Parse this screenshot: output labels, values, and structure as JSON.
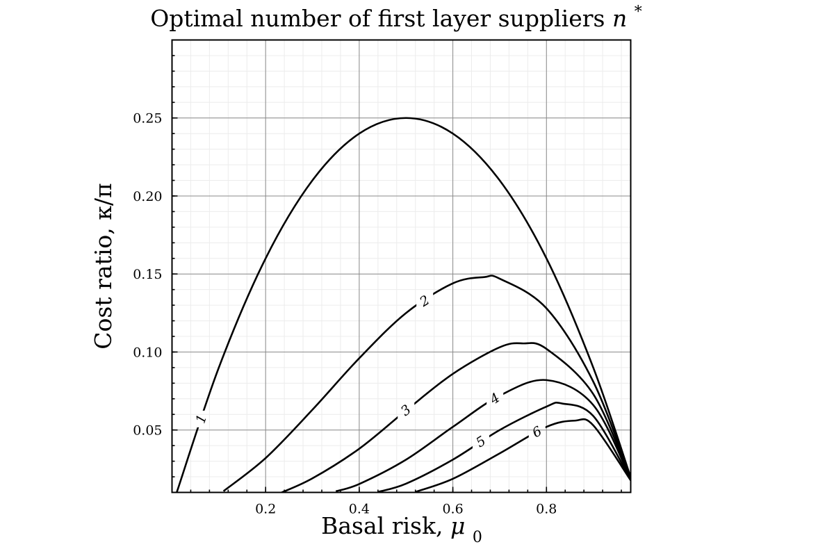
{
  "chart_data": {
    "type": "line",
    "title": "Optimal number of first layer suppliers",
    "title_symbol": "n",
    "title_superscript": "*",
    "xlabel": "Basal risk, ",
    "xlabel_symbol": "μ",
    "xlabel_subscript": "0",
    "ylabel": "Cost ratio, κ/π",
    "xlim": [
      0.0,
      0.98
    ],
    "ylim": [
      0.01,
      0.3
    ],
    "xticks": [
      0.2,
      0.4,
      0.6,
      0.8
    ],
    "xtick_labels": [
      "0.2",
      "0.4",
      "0.6",
      "0.8"
    ],
    "yticks": [
      0.05,
      0.1,
      0.15,
      0.2,
      0.25
    ],
    "ytick_labels": [
      "0.05",
      "0.10",
      "0.15",
      "0.20",
      "0.25"
    ],
    "grid": true,
    "legend": "none",
    "series": [
      {
        "label": "1",
        "x": [
          0.01,
          0.1,
          0.2,
          0.3,
          0.4,
          0.5,
          0.6,
          0.7,
          0.8,
          0.9,
          0.98
        ],
        "y": [
          0.0099,
          0.09,
          0.16,
          0.21,
          0.24,
          0.25,
          0.24,
          0.21,
          0.16,
          0.09,
          0.0196
        ],
        "label_x": 0.063
      },
      {
        "label": "2",
        "x": [
          0.11,
          0.2,
          0.3,
          0.4,
          0.5,
          0.6,
          0.667,
          0.7,
          0.8,
          0.9,
          0.98
        ],
        "y": [
          0.0108,
          0.032,
          0.063,
          0.096,
          0.125,
          0.144,
          0.148,
          0.147,
          0.128,
          0.081,
          0.0192
        ],
        "label_x": 0.54
      },
      {
        "label": "3",
        "x": [
          0.23,
          0.3,
          0.4,
          0.5,
          0.6,
          0.7,
          0.75,
          0.8,
          0.9,
          0.98
        ],
        "y": [
          0.0094,
          0.019,
          0.038,
          0.0625,
          0.086,
          0.103,
          0.1055,
          0.102,
          0.073,
          0.0188
        ],
        "label_x": 0.5
      },
      {
        "label": "4",
        "x": [
          0.35,
          0.4,
          0.5,
          0.6,
          0.7,
          0.8,
          0.9,
          0.98
        ],
        "y": [
          0.0107,
          0.0154,
          0.031,
          0.052,
          0.072,
          0.082,
          0.066,
          0.0184
        ],
        "label_x": 0.69
      },
      {
        "label": "5",
        "x": [
          0.44,
          0.5,
          0.6,
          0.7,
          0.8,
          0.833,
          0.9,
          0.98
        ],
        "y": [
          0.0103,
          0.0156,
          0.031,
          0.05,
          0.065,
          0.067,
          0.059,
          0.018
        ],
        "label_x": 0.66
      },
      {
        "label": "6",
        "x": [
          0.52,
          0.6,
          0.7,
          0.8,
          0.86,
          0.9,
          0.98
        ],
        "y": [
          0.0103,
          0.0187,
          0.035,
          0.052,
          0.056,
          0.053,
          0.0177
        ],
        "label_x": 0.78
      }
    ]
  }
}
